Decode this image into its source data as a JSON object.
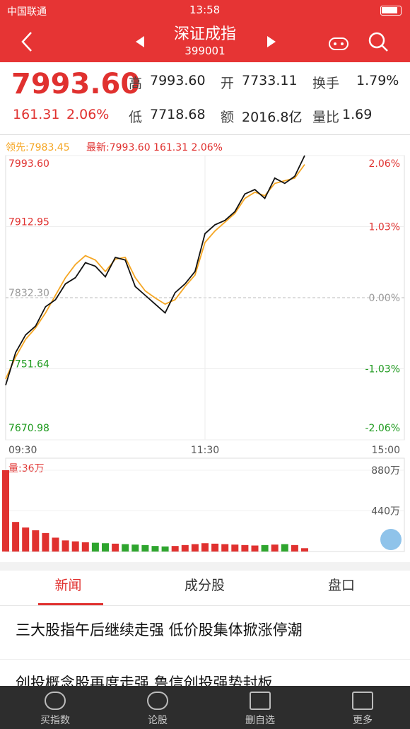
{
  "status": {
    "carrier": "中国联通",
    "time": "13:58"
  },
  "header": {
    "title": "深证成指",
    "code": "399001"
  },
  "quote": {
    "price": "7993.60",
    "change": "161.31",
    "percent": "2.06%",
    "fields": [
      {
        "label": "高",
        "value": "7993.60"
      },
      {
        "label": "开",
        "value": "7733.11"
      },
      {
        "label": "换手",
        "value": "1.79%"
      },
      {
        "label": "低",
        "value": "7718.68"
      },
      {
        "label": "额",
        "value": "2016.8亿"
      },
      {
        "label": "量比",
        "value": "1.69"
      }
    ]
  },
  "chart_data": [
    {
      "type": "line",
      "legend_lead": "领先:7983.45",
      "legend_latest": "最新:7993.60 161.31 2.06%",
      "x": [
        0,
        6,
        12,
        18,
        24,
        30,
        36,
        42,
        48,
        54,
        60,
        66,
        72,
        78,
        84,
        90,
        96,
        102,
        108,
        114,
        120,
        126,
        132,
        138,
        144,
        150,
        156,
        162,
        168,
        174,
        180
      ],
      "xlim": [
        0,
        240
      ],
      "xticks": [
        {
          "value": 0,
          "label": "09:30"
        },
        {
          "value": 120,
          "label": "11:30"
        },
        {
          "value": 240,
          "label": "15:00"
        }
      ],
      "ylim": [
        7670.98,
        7993.6
      ],
      "yticks": [
        {
          "value": 7993.6,
          "label": "7993.60"
        },
        {
          "value": 7912.95,
          "label": "7912.95"
        },
        {
          "value": 7832.3,
          "label": "7832.30"
        },
        {
          "value": 7751.64,
          "label": "7751.64"
        },
        {
          "value": 7670.98,
          "label": "7670.98"
        }
      ],
      "y2lim": [
        -2.06,
        2.06
      ],
      "y2ticks": [
        {
          "value": 2.06,
          "label": "2.06%"
        },
        {
          "value": 1.03,
          "label": "1.03%"
        },
        {
          "value": 0,
          "label": "0.00%"
        },
        {
          "value": -1.03,
          "label": "-1.03%"
        },
        {
          "value": -2.06,
          "label": "-2.06%"
        }
      ],
      "series": [
        {
          "name": "最新",
          "color": "#111111",
          "values": [
            7733,
            7770,
            7790,
            7800,
            7822,
            7830,
            7848,
            7855,
            7872,
            7868,
            7856,
            7878,
            7875,
            7845,
            7835,
            7825,
            7815,
            7838,
            7848,
            7862,
            7905,
            7915,
            7920,
            7930,
            7950,
            7955,
            7945,
            7968,
            7962,
            7970,
            7993.6
          ]
        },
        {
          "name": "领先",
          "color": "#f5a623",
          "values": [
            7740,
            7765,
            7785,
            7798,
            7815,
            7835,
            7855,
            7870,
            7880,
            7875,
            7862,
            7876,
            7878,
            7855,
            7840,
            7832,
            7825,
            7830,
            7845,
            7858,
            7895,
            7908,
            7918,
            7928,
            7945,
            7952,
            7948,
            7962,
            7965,
            7968,
            7983.45
          ]
        }
      ]
    },
    {
      "type": "bar",
      "label": "量:36万",
      "ylim": [
        0,
        880
      ],
      "yticks": [
        {
          "value": 880,
          "label": "880万"
        },
        {
          "value": 440,
          "label": "440万"
        }
      ],
      "up_color": "#e0312f",
      "down_color": "#2ea52e",
      "values": [
        880,
        320,
        260,
        230,
        200,
        150,
        120,
        110,
        100,
        95,
        90,
        85,
        80,
        75,
        70,
        60,
        55,
        60,
        70,
        80,
        90,
        85,
        80,
        75,
        70,
        65,
        70,
        75,
        80,
        70,
        36
      ]
    }
  ],
  "tabs": [
    "新闻",
    "成分股",
    "盘口"
  ],
  "news": [
    "三大股指午后继续走强 低价股集体掀涨停潮",
    "创投概念股再度走强 鲁信创投强势封板"
  ],
  "nav": [
    "买指数",
    "论股",
    "删自选",
    "更多"
  ]
}
